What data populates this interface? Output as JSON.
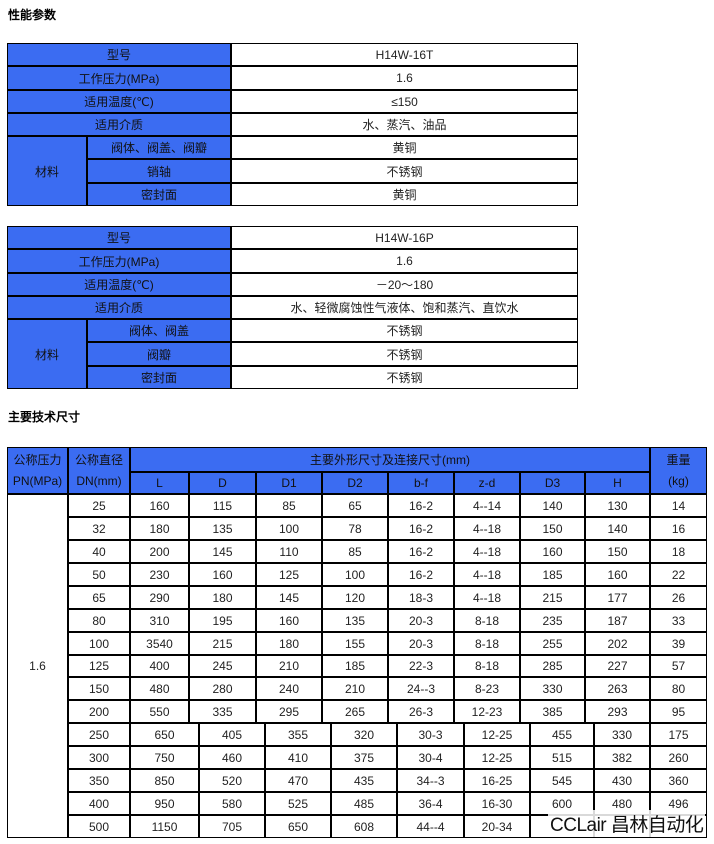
{
  "sections": {
    "performance_title": "性能参数",
    "dimensions_title": "主要技术尺寸"
  },
  "spec_tables": [
    {
      "rows": [
        {
          "label": "型号",
          "value": "H14W-16T"
        },
        {
          "label": "工作压力(MPa)",
          "value": "1.6"
        },
        {
          "label": "适用温度(℃)",
          "value": "≤150"
        },
        {
          "label": "适用介质",
          "value": "水、蒸汽、油品"
        }
      ],
      "material": {
        "label": "材料",
        "items": [
          {
            "label": "阀体、阀盖、阀瓣",
            "value": "黄铜"
          },
          {
            "label": "销轴",
            "value": "不锈钢"
          },
          {
            "label": "密封面",
            "value": "黄铜"
          }
        ]
      }
    },
    {
      "rows": [
        {
          "label": "型号",
          "value": "H14W-16P"
        },
        {
          "label": "工作压力(MPa)",
          "value": "1.6"
        },
        {
          "label": "适用温度(℃)",
          "value": "－20～180"
        },
        {
          "label": "适用介质",
          "value": "水、轻微腐蚀性气液体、饱和蒸汽、直饮水"
        }
      ],
      "material": {
        "label": "材料",
        "items": [
          {
            "label": "阀体、阀盖",
            "value": "不锈钢"
          },
          {
            "label": "阀瓣",
            "value": "不锈钢"
          },
          {
            "label": "密封面",
            "value": "不锈钢"
          }
        ]
      }
    }
  ],
  "dimensions": {
    "header": {
      "pn": [
        "公称压力",
        "PN(MPa)"
      ],
      "dn": [
        "公称直径",
        "DN(mm)"
      ],
      "group": "主要外形尺寸及连接尺寸(mm)",
      "columns": [
        "L",
        "D",
        "D1",
        "D2",
        "b-f",
        "z-d",
        "D3",
        "H"
      ],
      "weight": [
        "重量",
        "(kg)"
      ]
    },
    "pn_value": "1.6",
    "rows": [
      [
        "25",
        "160",
        "115",
        "85",
        "65",
        "16-2",
        "4--14",
        "140",
        "130",
        "14"
      ],
      [
        "32",
        "180",
        "135",
        "100",
        "78",
        "16-2",
        "4--18",
        "150",
        "140",
        "16"
      ],
      [
        "40",
        "200",
        "145",
        "110",
        "85",
        "16-2",
        "4--18",
        "160",
        "150",
        "18"
      ],
      [
        "50",
        "230",
        "160",
        "125",
        "100",
        "16-2",
        "4--18",
        "185",
        "160",
        "22"
      ],
      [
        "65",
        "290",
        "180",
        "145",
        "120",
        "18-3",
        "4--18",
        "215",
        "177",
        "26"
      ],
      [
        "80",
        "310",
        "195",
        "160",
        "135",
        "20-3",
        "8-18",
        "235",
        "187",
        "33"
      ],
      [
        "100",
        "3540",
        "215",
        "180",
        "155",
        "20-3",
        "8-18",
        "255",
        "202",
        "39"
      ],
      [
        "125",
        "400",
        "245",
        "210",
        "185",
        "22-3",
        "8-18",
        "285",
        "227",
        "57"
      ],
      [
        "150",
        "480",
        "280",
        "240",
        "210",
        "24--3",
        "8-23",
        "330",
        "263",
        "80"
      ],
      [
        "200",
        "550",
        "335",
        "295",
        "265",
        "26-3",
        "12-23",
        "385",
        "293",
        "95"
      ],
      [
        "250",
        "650",
        "405",
        "355",
        "320",
        "30-3",
        "12-25",
        "455",
        "330",
        "175"
      ],
      [
        "300",
        "750",
        "460",
        "410",
        "375",
        "30-4",
        "12-25",
        "515",
        "382",
        "260"
      ],
      [
        "350",
        "850",
        "520",
        "470",
        "435",
        "34--3",
        "16-25",
        "545",
        "430",
        "360"
      ],
      [
        "400",
        "950",
        "580",
        "525",
        "485",
        "36-4",
        "16-30",
        "600",
        "480",
        "496"
      ],
      [
        "500",
        "1150",
        "705",
        "650",
        "608",
        "44--4",
        "20-34",
        "",
        "",
        ""
      ]
    ]
  },
  "watermark": "CCLair 昌林自动化",
  "colors": {
    "header_blue": "#3b6cf2",
    "border": "#000000"
  }
}
